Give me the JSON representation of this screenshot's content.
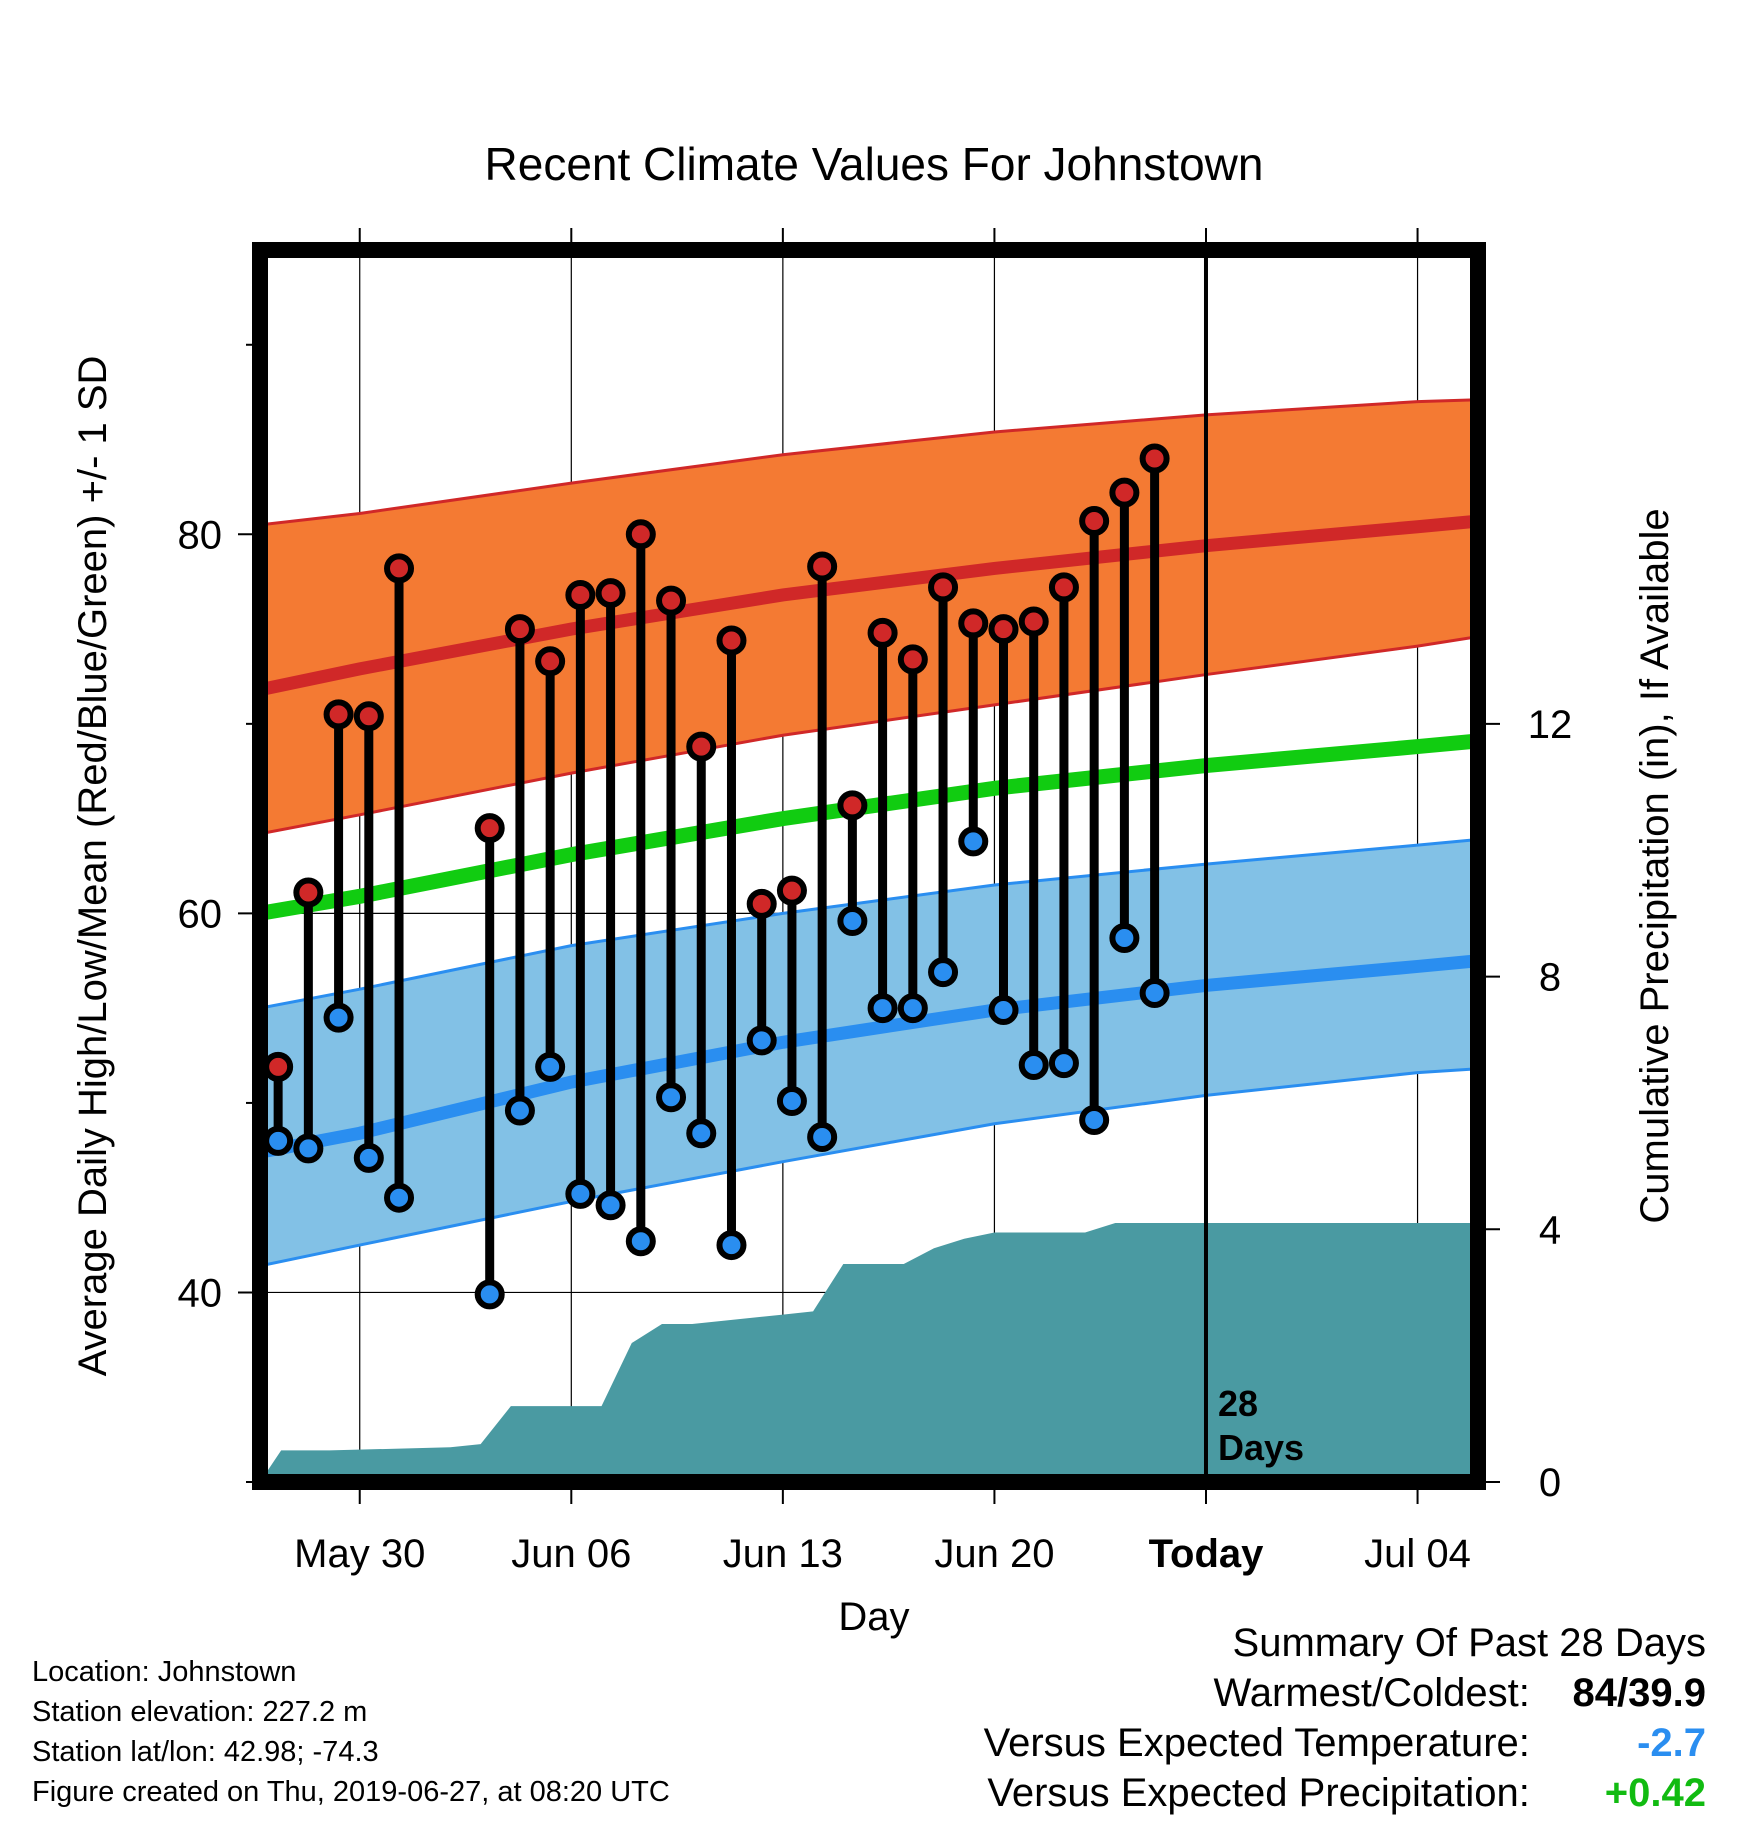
{
  "chart_data": {
    "type": "line",
    "title": "Recent Climate Values For Johnstown",
    "xlabel": "Day",
    "ylabel": "Average Daily High/Low/Mean (Red/Blue/Green) +/- 1 SD",
    "y2label": "Cumulative Precipitation (in), If Available",
    "x_tick_labels": [
      "May 30",
      "Jun 06",
      "Jun 13",
      "Jun 20",
      "Today",
      "Jul 04"
    ],
    "x_tick_days": [
      2,
      9,
      16,
      23,
      30,
      37
    ],
    "x_range_days": [
      -1.3,
      39.0
    ],
    "ylim": [
      30,
      95
    ],
    "y_ticks": [
      40,
      60,
      80
    ],
    "y2lim": [
      0,
      19.5
    ],
    "y2_ticks": [
      0,
      4,
      8,
      12
    ],
    "today_marker": {
      "day": 30,
      "label_line1": "28",
      "label_line2": "Days"
    },
    "colors": {
      "high_band": "#f47a33",
      "high_line": "#d02828",
      "low_band": "#82c1e6",
      "low_line": "#2a8ef0",
      "mean_line": "#11cc11",
      "precip": "#4a9aa2",
      "high_marker": "#d02828",
      "low_marker": "#2a8ef0"
    },
    "normals": {
      "days": [
        -1.3,
        2,
        9,
        16,
        23,
        30,
        37,
        39.0
      ],
      "high_mean": [
        71.8,
        72.9,
        75.0,
        76.8,
        78.2,
        79.4,
        80.4,
        80.7
      ],
      "high_upper": [
        80.5,
        81.1,
        82.7,
        84.2,
        85.4,
        86.3,
        87.0,
        87.1
      ],
      "high_lower": [
        64.2,
        65.2,
        67.4,
        69.4,
        71.0,
        72.6,
        74.1,
        74.6
      ],
      "mean": [
        60.0,
        60.9,
        63.1,
        65.0,
        66.6,
        67.8,
        68.8,
        69.1
      ],
      "low_mean": [
        47.4,
        48.4,
        51.1,
        53.2,
        54.9,
        56.2,
        57.2,
        57.5
      ],
      "low_upper": [
        55.0,
        56.0,
        58.3,
        60.0,
        61.5,
        62.6,
        63.6,
        63.9
      ],
      "low_lower": [
        41.4,
        42.5,
        44.8,
        46.9,
        48.9,
        50.4,
        51.6,
        51.8
      ]
    },
    "observed": {
      "days": [
        -0.7,
        0.3,
        1.3,
        2.3,
        3.3,
        6.3,
        7.3,
        8.3,
        9.3,
        10.3,
        11.3,
        12.3,
        13.3,
        14.3,
        15.3,
        16.3,
        17.3,
        18.3,
        19.3,
        20.3,
        21.3,
        22.3,
        23.3,
        24.3,
        25.3,
        26.3,
        27.3,
        28.3
      ],
      "high": [
        51.9,
        61.1,
        70.5,
        70.4,
        78.2,
        64.5,
        75.0,
        73.3,
        76.8,
        76.9,
        80.0,
        76.5,
        68.8,
        74.4,
        60.5,
        61.2,
        78.3,
        65.7,
        74.8,
        73.4,
        77.2,
        75.3,
        75.0,
        75.4,
        77.2,
        80.7,
        82.2,
        84.0
      ],
      "low": [
        48.0,
        47.6,
        54.5,
        47.1,
        45.0,
        39.9,
        49.6,
        51.9,
        45.2,
        44.6,
        42.7,
        50.3,
        48.4,
        42.5,
        53.3,
        50.1,
        48.2,
        59.6,
        55.0,
        55.0,
        56.9,
        63.8,
        54.9,
        52.0,
        52.1,
        49.1,
        58.7,
        55.8
      ]
    },
    "precip": {
      "days": [
        -1.3,
        -0.6,
        1.0,
        5.0,
        6.0,
        7.0,
        10.0,
        11.0,
        12.0,
        13.0,
        16.0,
        17.0,
        18.0,
        19.0,
        20.0,
        21.0,
        22.0,
        23.0,
        24.0,
        25.0,
        26.0,
        27.0,
        28.0,
        29.0,
        30.0,
        39.0
      ],
      "values": [
        0.0,
        0.5,
        0.5,
        0.55,
        0.6,
        1.2,
        1.2,
        2.2,
        2.5,
        2.5,
        2.65,
        2.7,
        3.45,
        3.45,
        3.45,
        3.7,
        3.85,
        3.95,
        3.95,
        3.95,
        3.95,
        4.1,
        4.1,
        4.1,
        4.1,
        4.1
      ]
    }
  },
  "footer": {
    "location": "Location: Johnstown",
    "elevation": "Station elevation: 227.2 m",
    "latlon": "Station lat/lon: 42.98; -74.3",
    "created": "Figure created on Thu, 2019-06-27, at 08:20 UTC"
  },
  "summary": {
    "title": "Summary Of Past 28 Days",
    "warm_label": "Warmest/Coldest:",
    "warm_value": "84/39.9",
    "temp_label": "Versus Expected Temperature:",
    "temp_value": "-2.7",
    "temp_color": "#2a8ef0",
    "precip_label": "Versus Expected Precipitation:",
    "precip_value": "+0.42",
    "precip_color": "#11bb11"
  }
}
